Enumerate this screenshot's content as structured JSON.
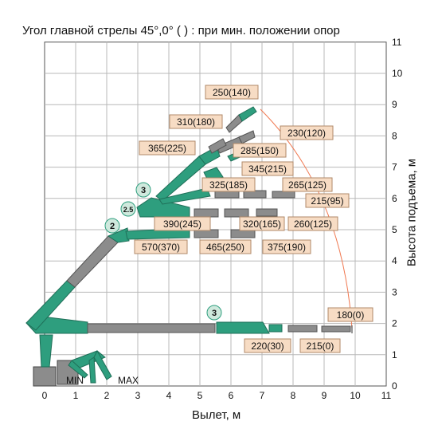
{
  "title": "Угол главной стрелы  45°,0°   ( ) : при мин. положении опор",
  "x_axis": {
    "label": "Вылет, м",
    "ticks": [
      "0",
      "1",
      "2",
      "3",
      "4",
      "5",
      "6",
      "7",
      "8",
      "9",
      "10",
      "11"
    ]
  },
  "y_axis": {
    "label": "Высота подъема, м",
    "ticks": [
      "0",
      "1",
      "2",
      "3",
      "4",
      "5",
      "6",
      "7",
      "8",
      "9",
      "10",
      "11"
    ]
  },
  "outrigger_labels": {
    "min": "MIN",
    "max": "MAX"
  },
  "stage_markers": [
    "2",
    "2.5",
    "3",
    "3"
  ],
  "load_labels": [
    "250(140)",
    "310(180)",
    "230(120)",
    "285(150)",
    "365(225)",
    "345(215)",
    "325(185)",
    "265(125)",
    "215(95)",
    "390(245)",
    "320(165)",
    "260(125)",
    "570(370)",
    "465(250)",
    "375(190)",
    "180(0)",
    "220(30)",
    "215(0)"
  ],
  "colors": {
    "boom_green": "#2e9e7e",
    "boom_gray": "#8c8c8c",
    "label_fill": "#f7dcc4",
    "label_stroke": "#b08a6a",
    "envelope": "#f07850",
    "grid": "#b8b8b8"
  }
}
